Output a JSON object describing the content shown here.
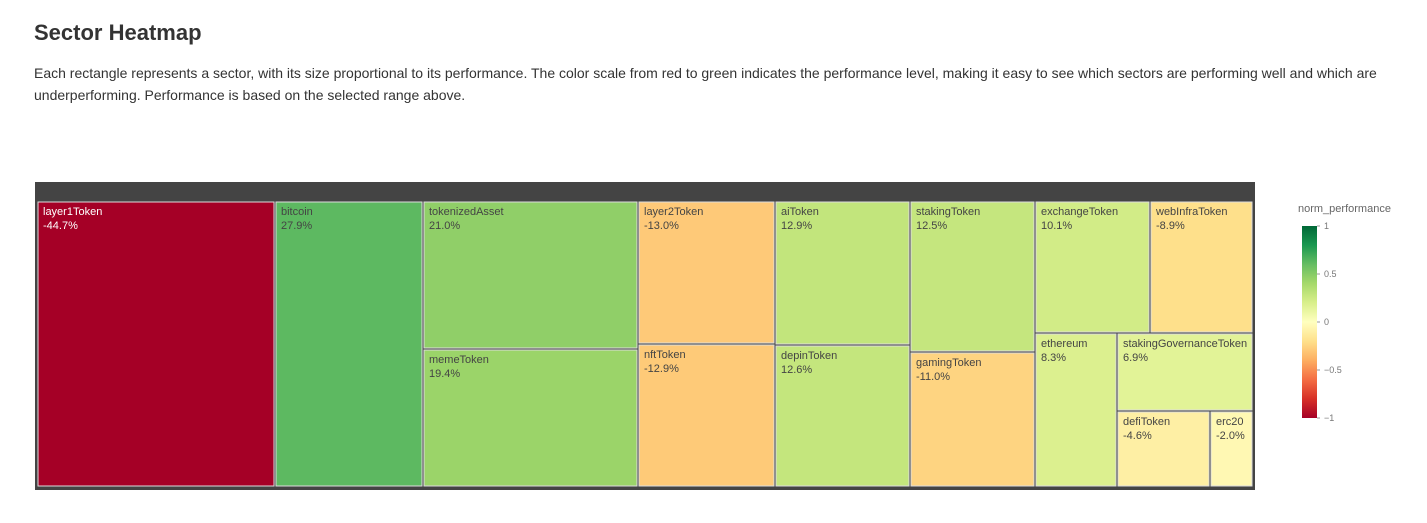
{
  "header": {
    "title": "Sector Heatmap",
    "description": "Each rectangle represents a sector, with its size proportional to its performance. The color scale from red to green indicates the performance level, making it easy to see which sectors are performing well and which are underperforming. Performance is based on the selected range above."
  },
  "chart_data": {
    "type": "treemap",
    "categories": [
      "layer1Token",
      "bitcoin",
      "tokenizedAsset",
      "memeToken",
      "layer2Token",
      "nftToken",
      "aiToken",
      "depinToken",
      "stakingToken",
      "gamingToken",
      "exchangeToken",
      "webInfraToken",
      "ethereum",
      "stakingGovernanceToken",
      "defiToken",
      "erc20"
    ],
    "values": [
      -44.7,
      27.9,
      21.0,
      19.4,
      -13.0,
      -12.9,
      12.9,
      12.6,
      12.5,
      -11.0,
      10.1,
      -8.9,
      8.3,
      6.9,
      -4.6,
      -2.0
    ],
    "value_labels": [
      "-44.7%",
      "27.9%",
      "21.0%",
      "19.4%",
      "-13.0%",
      "-12.9%",
      "12.9%",
      "12.6%",
      "12.5%",
      "-11.0%",
      "10.1%",
      "-8.9%",
      "8.3%",
      "6.9%",
      "-4.6%",
      "-2.0%"
    ],
    "colorscale": [
      "#a50026",
      "#d73027",
      "#f46d43",
      "#fdae61",
      "#fee08b",
      "#ffffbf",
      "#d9ef8b",
      "#a6d96a",
      "#66bd63",
      "#1a9850",
      "#006837"
    ],
    "colorbar_title": "norm_performance",
    "clim": [
      -1,
      1
    ],
    "cticks": [
      1,
      0.5,
      0,
      {
        "value": -0.5,
        "label": "−0.5"
      },
      {
        "value": -1,
        "label": "−1"
      }
    ]
  }
}
